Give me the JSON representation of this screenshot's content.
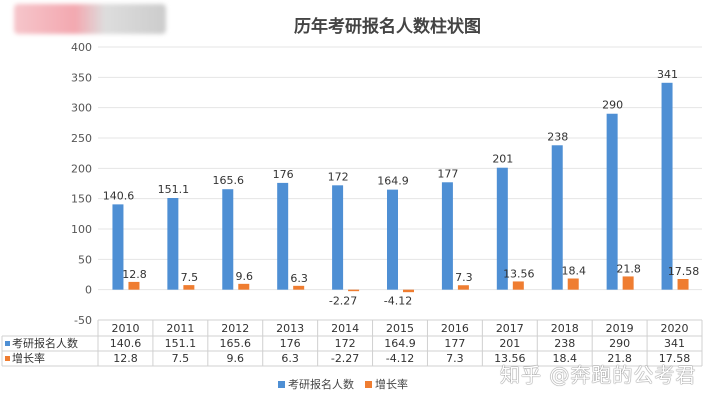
{
  "chart_data": {
    "type": "bar",
    "title": "历年考研报名人数柱状图",
    "categories": [
      "2010",
      "2011",
      "2012",
      "2013",
      "2014",
      "2015",
      "2016",
      "2017",
      "2018",
      "2019",
      "2020"
    ],
    "series": [
      {
        "name": "考研报名人数",
        "color": "#4e8fd4",
        "values": [
          140.6,
          151.1,
          165.6,
          176,
          172,
          164.9,
          177,
          201,
          238,
          290,
          341
        ],
        "labels": [
          "140.6",
          "151.1",
          "165.6",
          "176",
          "172",
          "164.9",
          "177",
          "201",
          "238",
          "290",
          "341"
        ]
      },
      {
        "name": "增长率",
        "color": "#ef7d31",
        "values": [
          12.8,
          7.5,
          9.6,
          6.3,
          -2.27,
          -4.12,
          7.3,
          13.56,
          18.4,
          21.8,
          17.58
        ],
        "labels": [
          "12.8",
          "7.5",
          "9.6",
          "6.3",
          "-2.27",
          "-4.12",
          "7.3",
          "13.56",
          "18.4",
          "21.8",
          "17.58"
        ]
      }
    ],
    "ylim": [
      -50,
      400
    ],
    "yticks": [
      "-50",
      "0",
      "50",
      "100",
      "150",
      "200",
      "250",
      "300",
      "350",
      "400"
    ],
    "grid": true,
    "legend": "bottom",
    "data_table": true
  },
  "watermark": "知乎 @奔跑的公考君"
}
